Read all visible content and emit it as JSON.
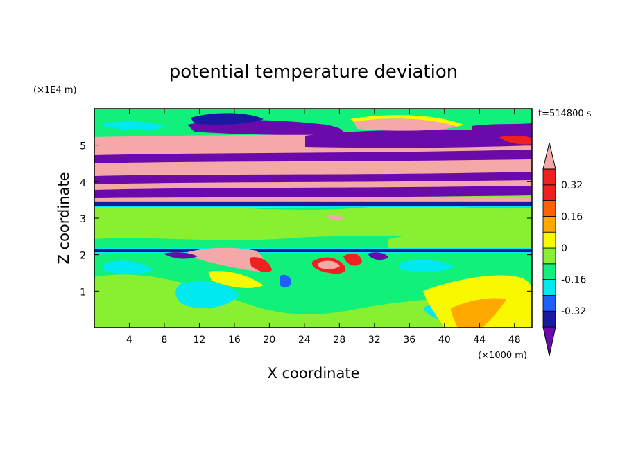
{
  "chart_data": {
    "type": "heatmap",
    "title": "potential temperature deviation",
    "xlabel": "X coordinate",
    "ylabel": "Z coordinate",
    "x_unit": "(×1000 m)",
    "y_unit": "(×1E4 m)",
    "time_label": "t=514800 s",
    "xlim": [
      0,
      50
    ],
    "ylim": [
      0,
      6
    ],
    "x_ticks": [
      4,
      8,
      12,
      16,
      20,
      24,
      28,
      32,
      36,
      40,
      44,
      48
    ],
    "y_ticks": [
      1,
      2,
      3,
      4,
      5
    ],
    "colorbar": {
      "levels": [
        -0.4,
        -0.32,
        -0.24,
        -0.16,
        -0.08,
        0,
        0.08,
        0.16,
        0.24,
        0.32,
        0.4
      ],
      "labels": [
        "-0.32",
        "-0.16",
        "0",
        "0.16",
        "0.32"
      ],
      "label_values": [
        -0.32,
        -0.16,
        0,
        0.16,
        0.32
      ],
      "colors": [
        "#6a0aab",
        "#1a1aa0",
        "#1f5fff",
        "#00e8f0",
        "#10f07a",
        "#88f030",
        "#f8f800",
        "#ffa800",
        "#ff6000",
        "#f02020",
        "#f4a8a8"
      ],
      "extend": "both"
    }
  }
}
